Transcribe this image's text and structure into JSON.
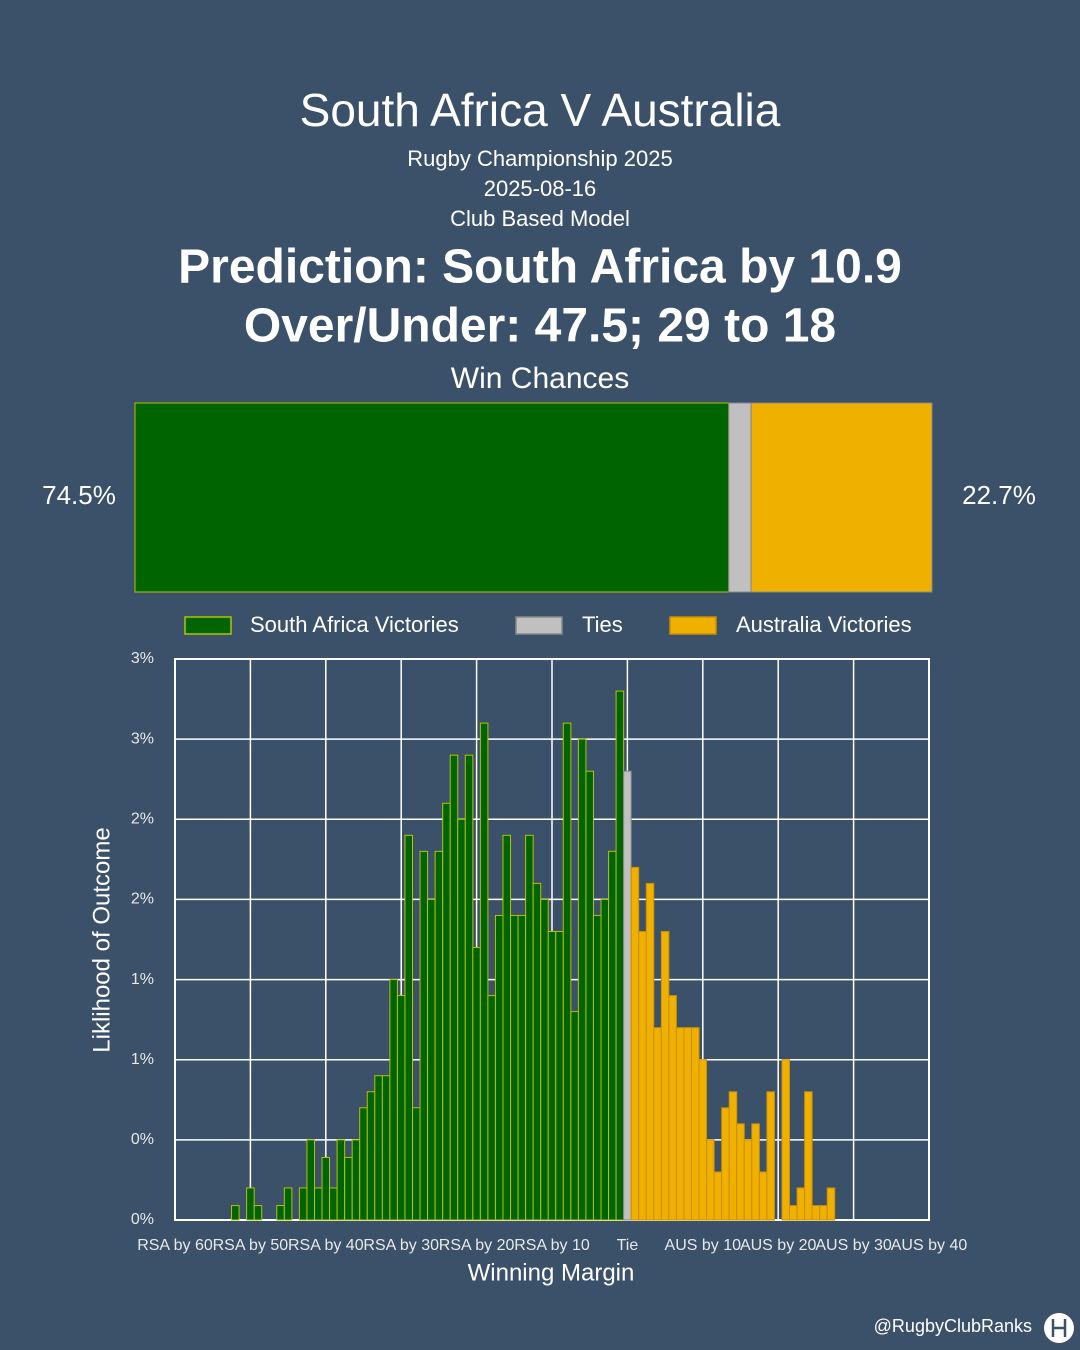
{
  "header": {
    "title": "South Africa V Australia",
    "competition": "Rugby Championship 2025",
    "date": "2025-08-16",
    "model": "Club Based Model",
    "prediction": "Prediction: South Africa by 10.9",
    "over_under": "Over/Under: 47.5; 29 to 18"
  },
  "chart_data": [
    {
      "type": "stacked_bar",
      "title": "Win Chances",
      "values": [
        74.5,
        2.8,
        22.7
      ],
      "value_labels": [
        "74.5%",
        null,
        "22.7%"
      ],
      "colors": [
        "#006400",
        "#c0c0c0",
        "#f0b000"
      ],
      "xlim": [
        0,
        100
      ]
    },
    {
      "type": "histogram",
      "x_label": "Winning Margin",
      "y_label": "Liklihood of Outcome",
      "legend": "top",
      "grid": true,
      "xlim": [
        -60,
        40
      ],
      "xticks": [
        {
          "value": -60,
          "label": "RSA by 60"
        },
        {
          "value": -50,
          "label": "RSA by 50"
        },
        {
          "value": -40,
          "label": "RSA by 40"
        },
        {
          "value": -30,
          "label": "RSA by 30"
        },
        {
          "value": -20,
          "label": "RSA by 20"
        },
        {
          "value": -10,
          "label": "RSA by 10"
        },
        {
          "value": 0,
          "label": "Tie"
        },
        {
          "value": 10,
          "label": "AUS by 10"
        },
        {
          "value": 20,
          "label": "AUS by 20"
        },
        {
          "value": 30,
          "label": "AUS by 30"
        },
        {
          "value": 40,
          "label": "AUS by 40"
        }
      ],
      "ylim": [
        0,
        3.5
      ],
      "yticks": [
        {
          "value": 0,
          "label": "0%"
        },
        {
          "value": 0.5,
          "label": "0%"
        },
        {
          "value": 1,
          "label": "1%"
        },
        {
          "value": 1.5,
          "label": "1%"
        },
        {
          "value": 2,
          "label": "2%"
        },
        {
          "value": 2.5,
          "label": "2%"
        },
        {
          "value": 3,
          "label": "3%"
        },
        {
          "value": 3.5,
          "label": "3%"
        }
      ],
      "series": [
        {
          "name": "South Africa Victories",
          "color": "#006400",
          "edgecolor": "#b8c000",
          "x": [
            -52,
            -50,
            -49,
            -46,
            -45,
            -43,
            -42,
            -41,
            -40,
            -39,
            -38,
            -37,
            -36,
            -35,
            -34,
            -33,
            -32,
            -31,
            -30,
            -29,
            -28,
            -27,
            -26,
            -25,
            -24,
            -23,
            -22,
            -21,
            -20,
            -19,
            -18,
            -17,
            -16,
            -15,
            -14,
            -13,
            -12,
            -11,
            -10,
            -9,
            -8,
            -7,
            -6,
            -5,
            -4,
            -3,
            -2,
            -1
          ],
          "values": [
            0.09,
            0.2,
            0.09,
            0.09,
            0.2,
            0.2,
            0.5,
            0.2,
            0.39,
            0.2,
            0.5,
            0.39,
            0.5,
            0.7,
            0.8,
            0.9,
            0.9,
            1.5,
            1.4,
            2.4,
            0.7,
            2.3,
            2.0,
            2.3,
            2.6,
            2.9,
            2.5,
            2.9,
            1.7,
            3.1,
            1.4,
            1.9,
            2.4,
            1.9,
            1.9,
            2.4,
            2.1,
            2.0,
            1.8,
            1.8,
            3.1,
            1.3,
            3.0,
            2.8,
            1.9,
            2.0,
            2.3,
            3.3
          ]
        },
        {
          "name": "Ties",
          "color": "#c0c0c0",
          "edgecolor": "#888888",
          "x": [
            0
          ],
          "values": [
            2.8
          ]
        },
        {
          "name": "Australia Victories",
          "color": "#f0b000",
          "edgecolor": "#c89000",
          "x": [
            1,
            2,
            3,
            4,
            5,
            6,
            7,
            8,
            9,
            10,
            11,
            12,
            13,
            14,
            15,
            16,
            17,
            18,
            19,
            21,
            22,
            23,
            24,
            25,
            26,
            27
          ],
          "values": [
            2.2,
            1.8,
            2.1,
            1.2,
            1.8,
            1.4,
            1.2,
            1.2,
            1.2,
            1.0,
            0.5,
            0.3,
            0.7,
            0.8,
            0.6,
            0.5,
            0.6,
            0.3,
            0.8,
            1.0,
            0.09,
            0.2,
            0.8,
            0.09,
            0.09,
            0.2
          ]
        }
      ]
    }
  ],
  "footer": {
    "handle": "@RugbyClubRanks"
  }
}
